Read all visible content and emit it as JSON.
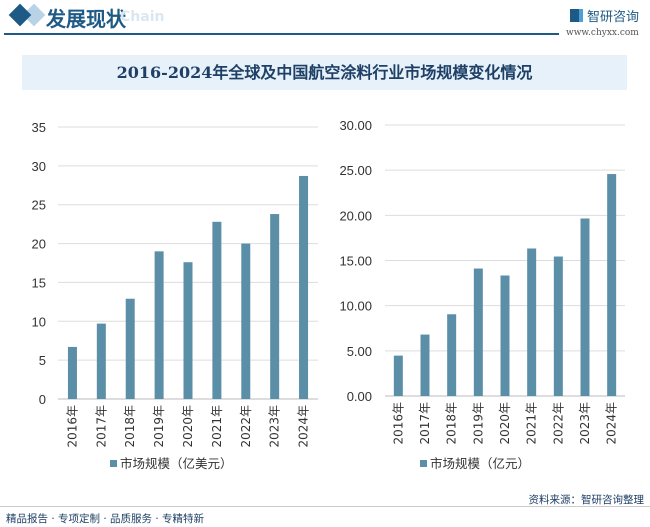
{
  "header": {
    "title": "发展现状",
    "subtitle_watermark": "Chain",
    "logo": "智研咨询",
    "url": "www.chyxx.com"
  },
  "chart_title": "2016-2024年全球及中国航空涂料行业市场规模变化情况",
  "chart_data": [
    {
      "type": "bar",
      "categories": [
        "2016年",
        "2017年",
        "2018年",
        "2019年",
        "2020年",
        "2021年",
        "2022年",
        "2023年",
        "2024年"
      ],
      "series": [
        {
          "name": "市场规模（亿美元）",
          "values": [
            6.7,
            9.7,
            12.9,
            19.0,
            17.6,
            22.8,
            20.0,
            23.8,
            28.7
          ]
        }
      ],
      "ylim": [
        0,
        35
      ],
      "yticks": [
        "0",
        "5",
        "10",
        "15",
        "20",
        "25",
        "30",
        "35"
      ],
      "grid": true,
      "legend": "bottom",
      "color": "#5b8fa8"
    },
    {
      "type": "bar",
      "categories": [
        "2016年",
        "2017年",
        "2018年",
        "2019年",
        "2020年",
        "2021年",
        "2022年",
        "2023年",
        "2024年"
      ],
      "series": [
        {
          "name": "市场规模（亿元）",
          "values": [
            4.47,
            6.8,
            9.05,
            14.11,
            13.34,
            16.33,
            15.44,
            19.65,
            24.57
          ]
        }
      ],
      "ylim": [
        0,
        30
      ],
      "yticks": [
        "0.00",
        "5.00",
        "10.00",
        "15.00",
        "20.00",
        "25.00",
        "30.00"
      ],
      "grid": true,
      "legend": "bottom",
      "color": "#5b8fa8"
    }
  ],
  "footer": {
    "left": "精品报告 · 专项定制 · 品质服务 · 专精特新",
    "right": "资料来源：智研咨询整理"
  }
}
